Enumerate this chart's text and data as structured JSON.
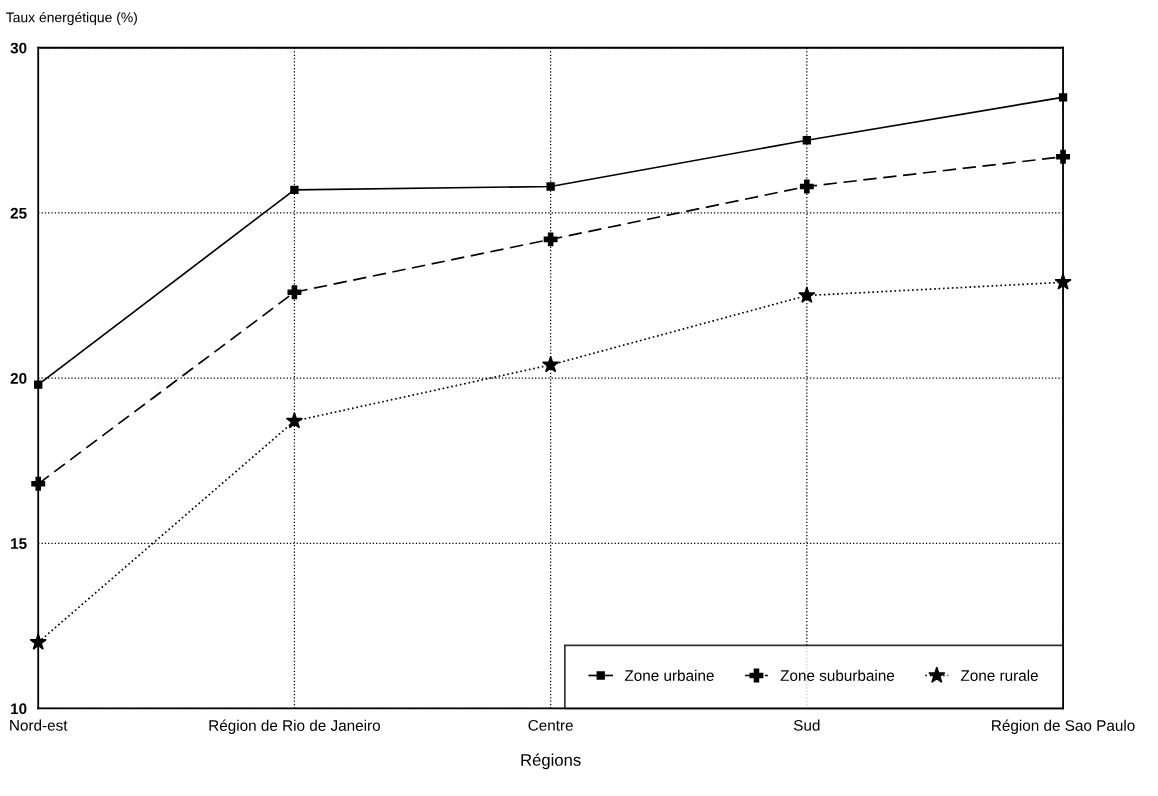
{
  "chart_data": {
    "type": "line",
    "ylabel": "Taux énergétique (%)",
    "xlabel": "Régions",
    "categories": [
      "Nord-est",
      "Région de Rio de Janeiro",
      "Centre",
      "Sud",
      "Région de Sao Paulo"
    ],
    "series": [
      {
        "name": "Zone urbaine",
        "color": "#000000",
        "marker": "square",
        "line_style": "solid",
        "values": [
          19.8,
          25.7,
          25.8,
          27.2,
          28.5
        ]
      },
      {
        "name": "Zone suburbaine",
        "color": "#000000",
        "marker": "cross",
        "line_style": "dashed",
        "values": [
          16.8,
          22.6,
          24.2,
          25.8,
          26.7
        ]
      },
      {
        "name": "Zone rurale",
        "color": "#000000",
        "marker": "star",
        "line_style": "dotted",
        "values": [
          12.0,
          18.7,
          20.4,
          22.5,
          22.9
        ]
      }
    ],
    "ylim": [
      10,
      30
    ],
    "yticks": [
      10,
      15,
      20,
      25,
      30
    ],
    "grid": true,
    "legend": "bottom right"
  }
}
